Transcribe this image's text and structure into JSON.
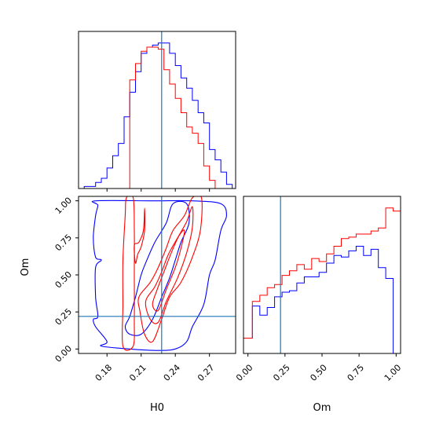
{
  "chart_data": {
    "type": "corner",
    "colors": {
      "series_a": "#0000ff",
      "series_b": "#ff0000",
      "truth": "#1f77b4"
    },
    "parameters": [
      "H0",
      "Om"
    ],
    "truth": {
      "H0": 0.228,
      "Om": 0.22
    },
    "panels": [
      {
        "id": "h0-hist",
        "type": "histogram",
        "xlim": [
          0.155,
          0.293
        ],
        "xlabel": "",
        "bins_edges": [
          0.155,
          0.16,
          0.165,
          0.17,
          0.175,
          0.18,
          0.185,
          0.19,
          0.195,
          0.2,
          0.205,
          0.21,
          0.215,
          0.22,
          0.225,
          0.23,
          0.235,
          0.24,
          0.245,
          0.25,
          0.255,
          0.26,
          0.265,
          0.27,
          0.275,
          0.28,
          0.285,
          0.29
        ],
        "series": [
          {
            "color": "blue",
            "values": [
              0,
              1,
              1,
              3,
              5,
              10,
              16,
              22,
              35,
              47,
              57,
              66,
              69,
              70,
              71,
              71,
              66,
              60,
              54,
              49,
              43,
              37,
              32,
              19,
              14,
              8,
              2
            ]
          },
          {
            "color": "red",
            "values": [
              0,
              0,
              0,
              0,
              0,
              0,
              0,
              0,
              0,
              53,
              61,
              67,
              69,
              69,
              68,
              58,
              51,
              44,
              37,
              30,
              27,
              22,
              11,
              4,
              0,
              0,
              0
            ]
          }
        ]
      },
      {
        "id": "om-hist",
        "type": "histogram",
        "xlim": [
          -0.03,
          1.03
        ],
        "xticks": [
          "0.00",
          "0.25",
          "0.50",
          "0.75",
          "1.00"
        ],
        "xlabel": "Om",
        "bins_edges": [
          -0.03,
          0.03,
          0.08,
          0.13,
          0.18,
          0.23,
          0.28,
          0.33,
          0.38,
          0.43,
          0.48,
          0.53,
          0.58,
          0.63,
          0.68,
          0.73,
          0.78,
          0.83,
          0.88,
          0.93,
          0.98,
          1.03
        ],
        "series": [
          {
            "color": "blue",
            "values": [
              10,
              31,
              25,
              30,
              37,
              40,
              41,
              46,
              50,
              50,
              53,
              59,
              64,
              63,
              67,
              70,
              64,
              68,
              56,
              49,
              0
            ]
          },
          {
            "color": "red",
            "values": [
              10,
              34,
              38,
              43,
              45,
              51,
              54,
              58,
              55,
              62,
              60,
              65,
              70,
              75,
              76,
              78,
              78,
              80,
              82,
              95,
              93
            ]
          }
        ]
      },
      {
        "id": "h0-om-contour",
        "type": "contour",
        "xlim": [
          0.155,
          0.293
        ],
        "ylim": [
          -0.03,
          1.03
        ],
        "xticks": [
          "0.18",
          "0.21",
          "0.24",
          "0.27"
        ],
        "yticks": [
          "0.00",
          "0.25",
          "0.50",
          "0.75",
          "1.00"
        ],
        "xlabel": "H0",
        "ylabel": "Om",
        "series": [
          {
            "color": "blue",
            "contours": [
              [
                [
                  0.175,
                  0.02
                ],
                [
                  0.18,
                  0.05
                ],
                [
                  0.17,
                  0.15
                ],
                [
                  0.168,
                  0.2
                ],
                [
                  0.172,
                  0.22
                ],
                [
                  0.17,
                  0.35
                ],
                [
                  0.17,
                  0.55
                ],
                [
                  0.175,
                  0.6
                ],
                [
                  0.17,
                  0.62
                ],
                [
                  0.168,
                  0.75
                ],
                [
                  0.17,
                  0.9
                ],
                [
                  0.172,
                  0.97
                ],
                [
                  0.17,
                  1.0
                ],
                [
                  0.22,
                  1.0
                ],
                [
                  0.255,
                  1.0
                ],
                [
                  0.28,
                  0.98
                ],
                [
                  0.285,
                  0.9
                ],
                [
                  0.28,
                  0.8
                ],
                [
                  0.275,
                  0.6
                ],
                [
                  0.27,
                  0.5
                ],
                [
                  0.265,
                  0.3
                ],
                [
                  0.255,
                  0.15
                ],
                [
                  0.25,
                  0.05
                ],
                [
                  0.24,
                  0.0
                ],
                [
                  0.225,
                  -0.01
                ],
                [
                  0.2,
                  0.0
                ]
              ],
              [
                [
                  0.196,
                  0.15
                ],
                [
                  0.2,
                  0.22
                ],
                [
                  0.205,
                  0.35
                ],
                [
                  0.21,
                  0.5
                ],
                [
                  0.215,
                  0.6
                ],
                [
                  0.222,
                  0.72
                ],
                [
                  0.232,
                  0.85
                ],
                [
                  0.238,
                  0.98
                ],
                [
                  0.25,
                  0.98
                ],
                [
                  0.252,
                  0.85
                ],
                [
                  0.245,
                  0.72
                ],
                [
                  0.24,
                  0.6
                ],
                [
                  0.235,
                  0.48
                ],
                [
                  0.228,
                  0.35
                ],
                [
                  0.22,
                  0.2
                ],
                [
                  0.21,
                  0.1
                ],
                [
                  0.2,
                  0.1
                ]
              ]
            ]
          },
          {
            "color": "red",
            "contours": [
              [
                [
                  0.194,
                  0.02
                ],
                [
                  0.194,
                  0.3
                ],
                [
                  0.194,
                  0.6
                ],
                [
                  0.196,
                  0.9
                ],
                [
                  0.197,
                  1.02
                ],
                [
                  0.203,
                  1.02
                ],
                [
                  0.204,
                  0.8
                ],
                [
                  0.204,
                  0.5
                ],
                [
                  0.204,
                  0.2
                ],
                [
                  0.203,
                  0.02
                ]
              ],
              [
                [
                  0.204,
                  0.7
                ],
                [
                  0.205,
                  0.58
                ],
                [
                  0.207,
                  0.64
                ],
                [
                  0.21,
                  0.69
                ],
                [
                  0.213,
                  0.8
                ],
                [
                  0.213,
                  0.95
                ],
                [
                  0.212,
                  0.8
                ],
                [
                  0.208,
                  0.72
                ]
              ],
              [
                [
                  0.208,
                  0.35
                ],
                [
                  0.209,
                  0.25
                ],
                [
                  0.213,
                  0.1
                ],
                [
                  0.22,
                  0.05
                ],
                [
                  0.228,
                  0.2
                ],
                [
                  0.235,
                  0.35
                ],
                [
                  0.245,
                  0.45
                ],
                [
                  0.255,
                  0.62
                ],
                [
                  0.262,
                  0.8
                ],
                [
                  0.263,
                  1.02
                ],
                [
                  0.255,
                  1.02
                ],
                [
                  0.248,
                  0.9
                ],
                [
                  0.238,
                  0.8
                ],
                [
                  0.232,
                  0.68
                ],
                [
                  0.225,
                  0.55
                ],
                [
                  0.218,
                  0.45
                ]
              ],
              [
                [
                  0.214,
                  0.32
                ],
                [
                  0.218,
                  0.2
                ],
                [
                  0.225,
                  0.18
                ],
                [
                  0.232,
                  0.32
                ],
                [
                  0.242,
                  0.48
                ],
                [
                  0.25,
                  0.65
                ],
                [
                  0.255,
                  0.82
                ],
                [
                  0.255,
                  0.96
                ],
                [
                  0.25,
                  0.86
                ],
                [
                  0.242,
                  0.75
                ],
                [
                  0.234,
                  0.64
                ],
                [
                  0.228,
                  0.52
                ],
                [
                  0.222,
                  0.42
                ]
              ],
              [
                [
                  0.22,
                  0.3
                ],
                [
                  0.225,
                  0.26
                ],
                [
                  0.232,
                  0.4
                ],
                [
                  0.24,
                  0.55
                ],
                [
                  0.245,
                  0.68
                ],
                [
                  0.248,
                  0.8
                ],
                [
                  0.243,
                  0.76
                ],
                [
                  0.236,
                  0.64
                ],
                [
                  0.23,
                  0.52
                ],
                [
                  0.224,
                  0.4
                ]
              ]
            ]
          }
        ]
      }
    ]
  }
}
